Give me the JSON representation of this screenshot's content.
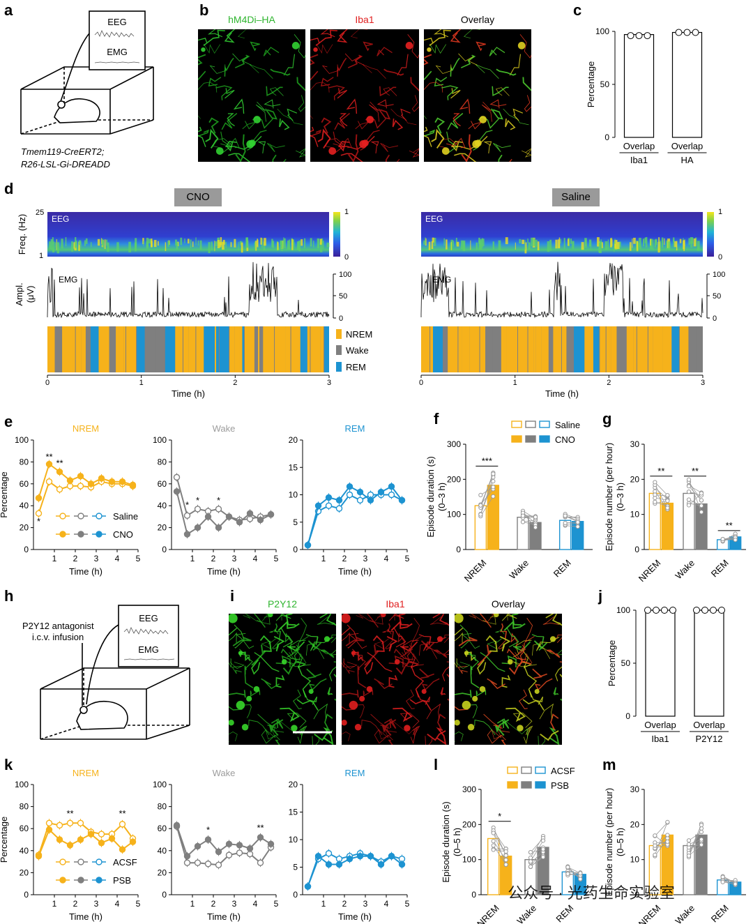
{
  "panels": {
    "a": "a",
    "b": "b",
    "c": "c",
    "d": "d",
    "e": "e",
    "f": "f",
    "g": "g",
    "h": "h",
    "i": "i",
    "j": "j",
    "k": "k",
    "l": "l",
    "m": "m"
  },
  "panel_a": {
    "eeg": "EEG",
    "emg": "EMG",
    "genotype_line1": "Tmem119-CreERT2;",
    "genotype_line2": "R26-LSL-Gi-DREADD"
  },
  "panel_b": {
    "titles": [
      "hM4Di–HA",
      "Iba1",
      "Overlay"
    ],
    "title_colors": [
      "#2fb52f",
      "#e02020",
      "#000000"
    ]
  },
  "panel_h": {
    "infusion_line1": "P2Y12 antagonist",
    "infusion_line2": "i.c.v. infusion",
    "eeg": "EEG",
    "emg": "EMG"
  },
  "panel_i": {
    "titles": [
      "P2Y12",
      "Iba1",
      "Overlay"
    ],
    "title_colors": [
      "#2fb52f",
      "#e02020",
      "#000000"
    ]
  },
  "panel_d": {
    "cno_label": "CNO",
    "saline_label": "Saline",
    "freq_label": "Freq. (Hz)",
    "freq_ticks": [
      "25",
      "1"
    ],
    "eeg_label": "EEG",
    "colorbar_ticks": [
      "1",
      "0"
    ],
    "ampl_label": "Ampl.",
    "ampl_unit": "(μV)",
    "emg_label": "EMG",
    "emg_ticks": [
      "100",
      "50",
      "0"
    ],
    "legend": [
      "NREM",
      "Wake",
      "REM"
    ],
    "time_ticks": [
      "0",
      "1",
      "2",
      "3"
    ],
    "xlabel": "Time (h)"
  },
  "colors": {
    "nrem": "#f6b21b",
    "wake": "#7f7f7f",
    "rem": "#1d93d1",
    "nrem_title": "#f6b21b",
    "wake_title": "#9c9c9c",
    "rem_title": "#1d93d1"
  },
  "chart_data": [
    {
      "id": "c",
      "type": "bar",
      "categories": [
        "Overlap",
        "Overlap"
      ],
      "groups": [
        "Iba1",
        "HA"
      ],
      "values": [
        97,
        99
      ],
      "points": [
        [
          96,
          96,
          96
        ],
        [
          99,
          99,
          99
        ]
      ],
      "ylabel": "Percentage",
      "yticks": [
        "0",
        "50",
        "100"
      ],
      "ylim": [
        0,
        100
      ]
    },
    {
      "id": "e-nrem",
      "type": "line",
      "title": "NREM",
      "x": [
        0.25,
        0.75,
        1.25,
        1.75,
        2.25,
        2.75,
        3.25,
        3.75,
        4.25,
        4.75
      ],
      "series": [
        {
          "name": "Saline",
          "values": [
            33,
            62,
            55,
            58,
            58,
            57,
            62,
            60,
            60,
            58
          ]
        },
        {
          "name": "CNO",
          "values": [
            47,
            78,
            71,
            63,
            67,
            60,
            65,
            62,
            62,
            59
          ]
        }
      ],
      "stars": [
        {
          "x": 0.25,
          "y": 23,
          "text": "*"
        },
        {
          "x": 0.75,
          "y": 82,
          "text": "**"
        },
        {
          "x": 1.25,
          "y": 76,
          "text": "**"
        }
      ],
      "xlabel": "Time (h)",
      "ylabel": "Percentage",
      "xticks": [
        "1",
        "2",
        "3",
        "4",
        "5"
      ],
      "yticks": [
        "0",
        "20",
        "40",
        "60",
        "80",
        "100"
      ],
      "ylim": [
        0,
        100
      ]
    },
    {
      "id": "e-wake",
      "type": "line",
      "title": "Wake",
      "x": [
        0.25,
        0.75,
        1.25,
        1.75,
        2.25,
        2.75,
        3.25,
        3.75,
        4.25,
        4.75
      ],
      "series": [
        {
          "name": "Saline",
          "values": [
            66,
            31,
            37,
            35,
            37,
            30,
            27,
            28,
            30,
            32
          ]
        },
        {
          "name": "CNO",
          "values": [
            53,
            14,
            20,
            30,
            20,
            30,
            25,
            33,
            27,
            32
          ]
        }
      ],
      "stars": [
        {
          "x": 0.75,
          "y": 38,
          "text": "*"
        },
        {
          "x": 1.25,
          "y": 42,
          "text": "*"
        },
        {
          "x": 2.25,
          "y": 42,
          "text": "*"
        }
      ],
      "xlabel": "Time (h)",
      "xticks": [
        "1",
        "2",
        "3",
        "4",
        "5"
      ],
      "yticks": [
        "0",
        "20",
        "40",
        "60",
        "80",
        "100"
      ],
      "ylim": [
        0,
        100
      ]
    },
    {
      "id": "e-rem",
      "type": "line",
      "title": "REM",
      "x": [
        0.25,
        0.75,
        1.25,
        1.75,
        2.25,
        2.75,
        3.25,
        3.75,
        4.25,
        4.75
      ],
      "series": [
        {
          "name": "Saline",
          "values": [
            0.8,
            7,
            8,
            7.5,
            10,
            9,
            10,
            10,
            10,
            9
          ]
        },
        {
          "name": "CNO",
          "values": [
            0.8,
            8,
            9.5,
            9,
            11.5,
            10.5,
            9,
            10.5,
            11.5,
            9
          ]
        }
      ],
      "xlabel": "Time (h)",
      "xticks": [
        "1",
        "2",
        "3",
        "4",
        "5"
      ],
      "yticks": [
        "0",
        "5",
        "10",
        "15",
        "20"
      ],
      "ylim": [
        0,
        20
      ]
    },
    {
      "id": "f",
      "type": "bar",
      "categories": [
        "NREM",
        "Wake",
        "REM"
      ],
      "series": [
        {
          "name": "Saline",
          "values": [
            125,
            92,
            83
          ]
        },
        {
          "name": "CNO",
          "values": [
            183,
            77,
            80
          ]
        }
      ],
      "stars": [
        {
          "category": 0,
          "text": "***"
        }
      ],
      "ylabel": "Episode duration (s)",
      "ylabel2": "(0–3 h)",
      "yticks": [
        "0",
        "100",
        "200",
        "300"
      ],
      "ylim": [
        0,
        300
      ]
    },
    {
      "id": "g",
      "type": "bar",
      "categories": [
        "NREM",
        "Wake",
        "REM"
      ],
      "series": [
        {
          "name": "Saline",
          "values": [
            16,
            16,
            2.8
          ]
        },
        {
          "name": "CNO",
          "values": [
            13.2,
            13,
            3.6
          ]
        }
      ],
      "stars": [
        {
          "category": 0,
          "text": "**"
        },
        {
          "category": 1,
          "text": "**"
        },
        {
          "category": 2,
          "text": "**"
        }
      ],
      "ylabel": "Episode number (per hour)",
      "ylabel2": "(0–3 h)",
      "yticks": [
        "0",
        "10",
        "20",
        "30"
      ],
      "ylim": [
        0,
        30
      ]
    },
    {
      "id": "j",
      "type": "bar",
      "categories": [
        "Overlap",
        "Overlap"
      ],
      "groups": [
        "Iba1",
        "P2Y12"
      ],
      "values": [
        100,
        100
      ],
      "points": [
        [
          100,
          100,
          100,
          100
        ],
        [
          100,
          100,
          100,
          100
        ]
      ],
      "ylabel": "Percentage",
      "yticks": [
        "0",
        "50",
        "100"
      ],
      "ylim": [
        0,
        100
      ]
    },
    {
      "id": "k-nrem",
      "type": "line",
      "title": "NREM",
      "x": [
        0.25,
        0.75,
        1.25,
        1.75,
        2.25,
        2.75,
        3.25,
        3.75,
        4.25,
        4.75
      ],
      "series": [
        {
          "name": "ACSF",
          "values": [
            36,
            65,
            63,
            65,
            65,
            57,
            55,
            55,
            64,
            51
          ]
        },
        {
          "name": "PSB",
          "values": [
            35,
            59,
            50,
            45,
            50,
            55,
            47,
            51,
            41,
            48
          ]
        }
      ],
      "stars": [
        {
          "x": 1.75,
          "y": 71,
          "text": "**"
        },
        {
          "x": 4.25,
          "y": 71,
          "text": "**"
        }
      ],
      "xlabel": "Time (h)",
      "ylabel": "Percentage",
      "xticks": [
        "1",
        "2",
        "3",
        "4",
        "5"
      ],
      "yticks": [
        "0",
        "20",
        "40",
        "60",
        "80",
        "100"
      ],
      "ylim": [
        0,
        100
      ]
    },
    {
      "id": "k-wake",
      "type": "line",
      "title": "Wake",
      "x": [
        0.25,
        0.75,
        1.25,
        1.75,
        2.25,
        2.75,
        3.25,
        3.75,
        4.25,
        4.75
      ],
      "series": [
        {
          "name": "ACSF",
          "values": [
            62,
            29,
            29,
            28,
            27,
            36,
            38,
            37,
            29,
            43
          ]
        },
        {
          "name": "PSB",
          "values": [
            63,
            35,
            44,
            50,
            39,
            46,
            45,
            42,
            52,
            46
          ]
        }
      ],
      "stars": [
        {
          "x": 1.75,
          "y": 56,
          "text": "*"
        },
        {
          "x": 4.25,
          "y": 58,
          "text": "**"
        }
      ],
      "xlabel": "Time (h)",
      "xticks": [
        "1",
        "2",
        "3",
        "4",
        "5"
      ],
      "yticks": [
        "0",
        "20",
        "40",
        "60",
        "80",
        "100"
      ],
      "ylim": [
        0,
        100
      ]
    },
    {
      "id": "k-rem",
      "type": "line",
      "title": "REM",
      "x": [
        0.25,
        0.75,
        1.25,
        1.75,
        2.25,
        2.75,
        3.25,
        3.75,
        4.25,
        4.75
      ],
      "series": [
        {
          "name": "ACSF",
          "values": [
            1.5,
            6.5,
            7.5,
            6.5,
            7,
            7.5,
            7,
            6,
            7,
            6.5
          ]
        },
        {
          "name": "PSB",
          "values": [
            1.5,
            7,
            5.5,
            5.5,
            6.5,
            7,
            7,
            5.5,
            7,
            5.5
          ]
        }
      ],
      "xlabel": "Time (h)",
      "xticks": [
        "1",
        "2",
        "3",
        "4",
        "5"
      ],
      "yticks": [
        "0",
        "5",
        "10",
        "15",
        "20"
      ],
      "ylim": [
        0,
        20
      ]
    },
    {
      "id": "l",
      "type": "bar",
      "categories": [
        "NREM",
        "Wake",
        "REM"
      ],
      "series": [
        {
          "name": "ACSF",
          "values": [
            160,
            100,
            65
          ]
        },
        {
          "name": "PSB",
          "values": [
            110,
            135,
            58
          ]
        }
      ],
      "stars": [
        {
          "category": 0,
          "text": "*"
        }
      ],
      "ylabel": "Episode duration (s)",
      "ylabel2": "(0–5 h)",
      "yticks": [
        "0",
        "100",
        "200",
        "300"
      ],
      "ylim": [
        0,
        300
      ]
    },
    {
      "id": "m",
      "type": "bar",
      "categories": [
        "NREM",
        "Wake",
        "REM"
      ],
      "series": [
        {
          "name": "ACSF",
          "values": [
            14,
            14,
            4.2
          ]
        },
        {
          "name": "PSB",
          "values": [
            17,
            17,
            3.6
          ]
        }
      ],
      "ylabel": "Episode number (per hour)",
      "ylabel2": "(0–5 h)",
      "yticks": [
        "0",
        "10",
        "20",
        "30"
      ],
      "ylim": [
        0,
        30
      ]
    }
  ],
  "watermark": "公众号 · 光药生命实验室"
}
